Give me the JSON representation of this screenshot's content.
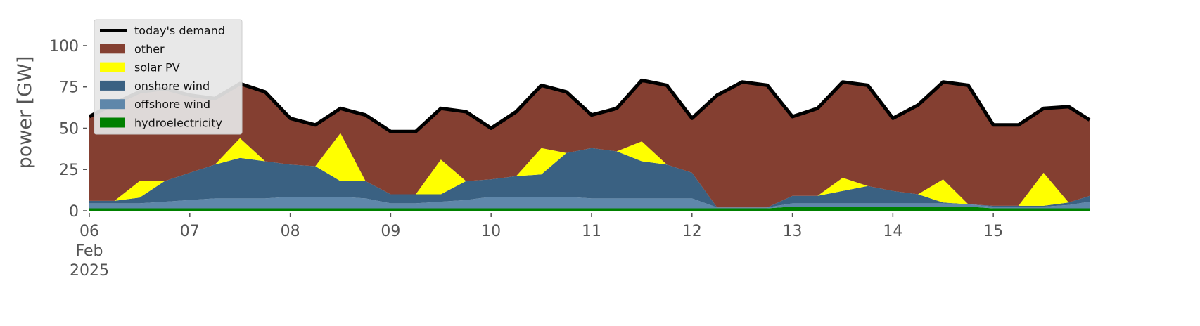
{
  "chart_data": {
    "type": "stacked_area",
    "ylabel": "power [GW]",
    "x": [
      "2025-02-06T00:00",
      "2025-02-06T06:00",
      "2025-02-06T12:00",
      "2025-02-06T18:00",
      "2025-02-07T00:00",
      "2025-02-07T06:00",
      "2025-02-07T12:00",
      "2025-02-07T18:00",
      "2025-02-08T00:00",
      "2025-02-08T06:00",
      "2025-02-08T12:00",
      "2025-02-08T18:00",
      "2025-02-09T00:00",
      "2025-02-09T06:00",
      "2025-02-09T12:00",
      "2025-02-09T18:00",
      "2025-02-10T00:00",
      "2025-02-10T06:00",
      "2025-02-10T12:00",
      "2025-02-10T18:00",
      "2025-02-11T00:00",
      "2025-02-11T06:00",
      "2025-02-11T12:00",
      "2025-02-11T18:00",
      "2025-02-12T00:00",
      "2025-02-12T06:00",
      "2025-02-12T12:00",
      "2025-02-12T18:00",
      "2025-02-13T00:00",
      "2025-02-13T06:00",
      "2025-02-13T12:00",
      "2025-02-13T18:00",
      "2025-02-14T00:00",
      "2025-02-14T06:00",
      "2025-02-14T12:00",
      "2025-02-14T18:00",
      "2025-02-15T00:00",
      "2025-02-15T06:00",
      "2025-02-15T12:00",
      "2025-02-15T18:00",
      "2025-02-15T23:00"
    ],
    "series": [
      {
        "name": "today's demand",
        "kind": "line",
        "color": "#000000",
        "values": [
          57,
          65,
          72,
          74,
          70,
          68,
          77,
          72,
          56,
          52,
          62,
          58,
          48,
          48,
          62,
          60,
          50,
          60,
          76,
          72,
          58,
          62,
          79,
          76,
          56,
          70,
          78,
          76,
          57,
          62,
          78,
          76,
          56,
          64,
          78,
          76,
          52,
          52,
          62,
          63,
          55
        ]
      },
      {
        "name": "other",
        "kind": "area",
        "color": "#843f31",
        "values": [
          51,
          59,
          54,
          56,
          47,
          40,
          33,
          42,
          28,
          25,
          15,
          40,
          38,
          38,
          31,
          42,
          31,
          39,
          38,
          37,
          20,
          26,
          37,
          48,
          33,
          68,
          76,
          74,
          48,
          53,
          58,
          61,
          44,
          54,
          59,
          72,
          49,
          49,
          39,
          58,
          46
        ]
      },
      {
        "name": "solar PV",
        "kind": "area",
        "color": "#ffff00",
        "values": [
          0,
          0,
          10,
          0,
          0,
          0,
          12,
          0,
          0,
          0,
          29,
          0,
          0,
          0,
          21,
          0,
          0,
          0,
          16,
          0,
          0,
          0,
          12,
          0,
          0,
          0,
          0,
          0,
          0,
          0,
          8,
          0,
          0,
          0,
          14,
          0,
          0,
          0,
          20,
          0,
          0
        ]
      },
      {
        "name": "onshore wind",
        "kind": "area",
        "color": "#3a6182",
        "values": [
          1.5,
          1.5,
          3.5,
          12.5,
          16.5,
          20.5,
          24.5,
          22.5,
          19.5,
          18.5,
          9.5,
          10.5,
          5.5,
          5.5,
          4.5,
          11.5,
          10.5,
          12.5,
          13.5,
          26.5,
          30.5,
          28.5,
          22.5,
          20.5,
          15.5,
          0,
          0,
          0,
          4.5,
          4.5,
          7.5,
          10.5,
          7.5,
          5.5,
          0.5,
          0,
          0.5,
          0.5,
          0.5,
          1.5,
          3.5
        ]
      },
      {
        "name": "offshore wind",
        "kind": "area",
        "color": "#5f87aa",
        "values": [
          3,
          3,
          3,
          4,
          5,
          6,
          6,
          6,
          7,
          7,
          7,
          6,
          3,
          3,
          4,
          5,
          7,
          7,
          7,
          7,
          6,
          6,
          6,
          6,
          6,
          0.5,
          0.5,
          0.5,
          2,
          2,
          2,
          2,
          2,
          2,
          2,
          1.5,
          1,
          1,
          1,
          2,
          4
        ]
      },
      {
        "name": "hydroelectricity",
        "kind": "area",
        "color": "#008000",
        "values": [
          1.5,
          1.5,
          1.5,
          1.5,
          1.5,
          1.5,
          1.5,
          1.5,
          1.5,
          1.5,
          1.5,
          1.5,
          1.5,
          1.5,
          1.5,
          1.5,
          1.5,
          1.5,
          1.5,
          1.5,
          1.5,
          1.5,
          1.5,
          1.5,
          1.5,
          1.5,
          1.5,
          1.5,
          2.5,
          2.5,
          2.5,
          2.5,
          2.5,
          2.5,
          2.5,
          2.5,
          1.5,
          1.5,
          1.5,
          1.5,
          1.5
        ]
      }
    ],
    "xlim": [
      "2025-02-06T00:00",
      "2025-02-15T23:00"
    ],
    "xticks": [
      {
        "value": "2025-02-06T00:00",
        "label": "06\nFeb\n2025"
      },
      {
        "value": "2025-02-07T00:00",
        "label": "07"
      },
      {
        "value": "2025-02-08T00:00",
        "label": "08"
      },
      {
        "value": "2025-02-09T00:00",
        "label": "09"
      },
      {
        "value": "2025-02-10T00:00",
        "label": "10"
      },
      {
        "value": "2025-02-11T00:00",
        "label": "11"
      },
      {
        "value": "2025-02-12T00:00",
        "label": "12"
      },
      {
        "value": "2025-02-13T00:00",
        "label": "13"
      },
      {
        "value": "2025-02-14T00:00",
        "label": "14"
      },
      {
        "value": "2025-02-15T00:00",
        "label": "15"
      }
    ],
    "ylim": [
      0,
      117
    ],
    "yticks": [
      0,
      25,
      50,
      75,
      100
    ],
    "legend": "upper left"
  }
}
